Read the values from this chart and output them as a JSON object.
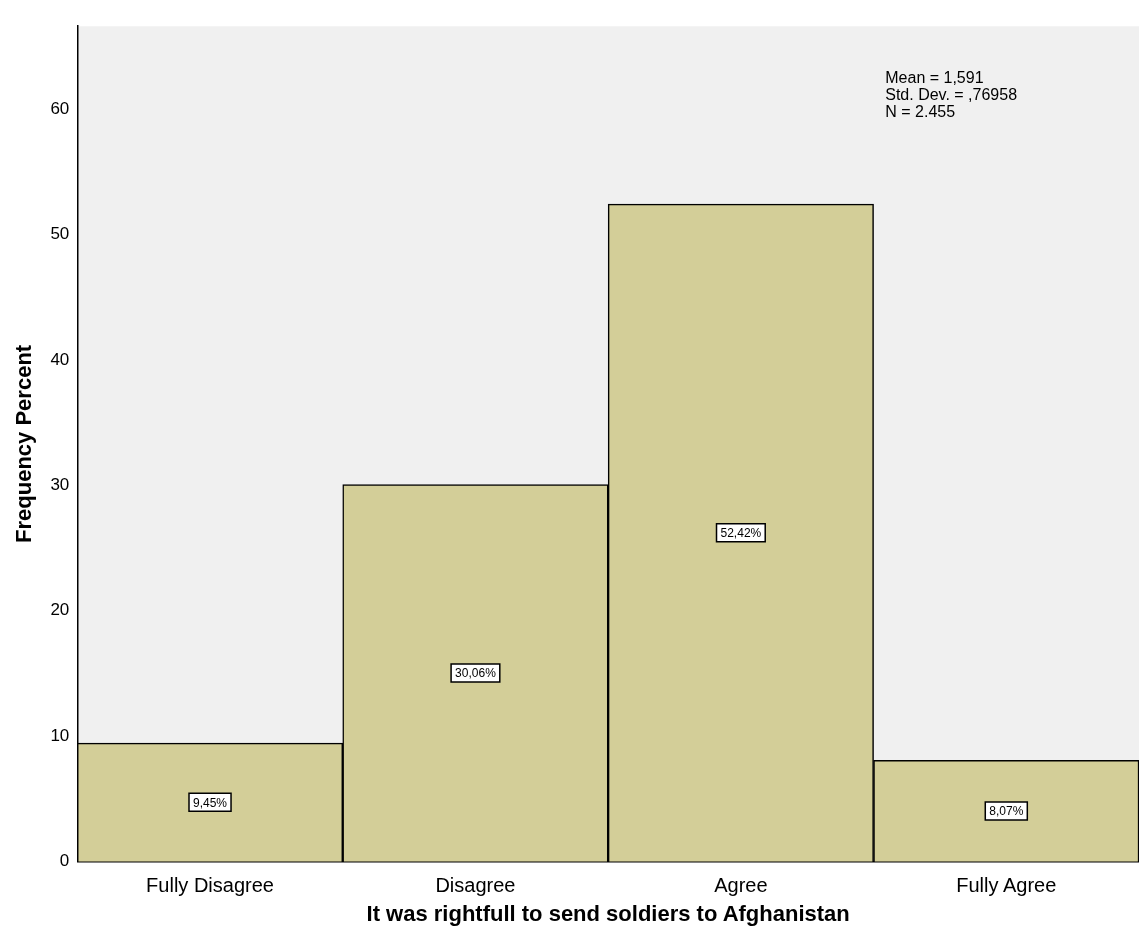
{
  "chart_data": {
    "type": "bar",
    "xlabel": "It was rightfull to send soldiers to Afghanistan",
    "ylabel": "Frequency Percent",
    "categories": [
      "Fully Disagree",
      "Disagree",
      "Agree",
      "Fully Agree"
    ],
    "values": [
      9.45,
      30.06,
      52.42,
      8.07
    ],
    "value_labels": [
      "9,45%",
      "30,06%",
      "52,42%",
      "8,07%"
    ],
    "color": "#d3ce98",
    "ylim": [
      0,
      66.6
    ],
    "yticks": [
      0,
      10,
      20,
      30,
      40,
      50,
      60
    ],
    "annotations": [
      "Mean = 1,591",
      "Std. Dev. = ,76958",
      "N = 2.455"
    ],
    "grid": false,
    "legend": false
  }
}
